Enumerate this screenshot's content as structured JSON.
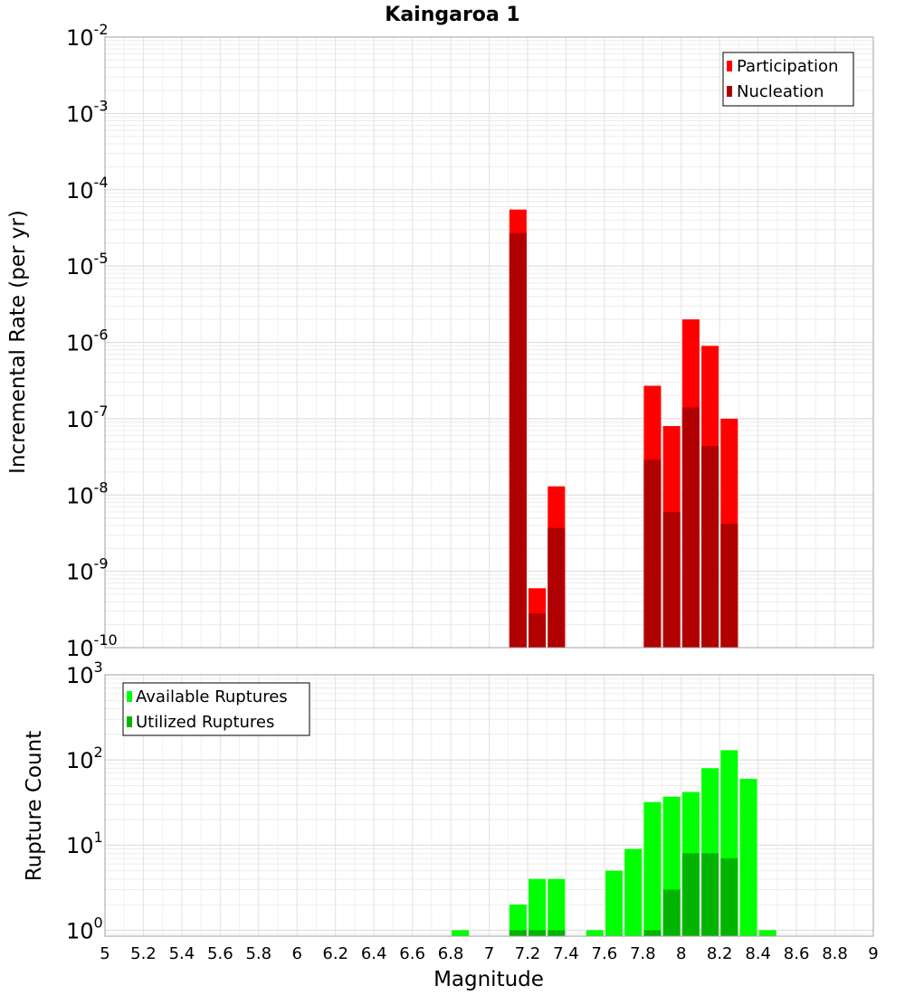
{
  "chart_data": [
    {
      "type": "bar",
      "title": "Kaingaroa 1",
      "xlabel": "",
      "ylabel": "Incremental Rate (per yr)",
      "yscale": "log",
      "ylim": [
        1e-10,
        0.01
      ],
      "xlim": [
        5,
        9
      ],
      "grid": true,
      "legend_position": "top-right",
      "legend": [
        "Participation",
        "Nucleation"
      ],
      "x": [
        7.15,
        7.25,
        7.35,
        7.85,
        7.95,
        8.05,
        8.15,
        8.25
      ],
      "series": [
        {
          "name": "Participation",
          "color": "#ff0000",
          "values": [
            5.5e-05,
            6e-10,
            1.3e-08,
            2.7e-07,
            8e-08,
            2e-06,
            9e-07,
            1e-07
          ]
        },
        {
          "name": "Nucleation",
          "color": "#b00000",
          "values": [
            2.7e-05,
            2.8e-10,
            3.7e-09,
            2.9e-08,
            6e-09,
            1.4e-07,
            4.4e-08,
            4.2e-09
          ]
        }
      ]
    },
    {
      "type": "bar",
      "title": "",
      "xlabel": "Magnitude",
      "ylabel": "Rupture Count",
      "yscale": "log",
      "ylim": [
        0.85,
        1000
      ],
      "xlim": [
        5,
        9
      ],
      "grid": true,
      "legend_position": "top-left",
      "legend": [
        "Available Ruptures",
        "Utilized Ruptures"
      ],
      "x_ticks": [
        "5",
        "5.2",
        "5.4",
        "5.6",
        "5.8",
        "6",
        "6.2",
        "6.4",
        "6.6",
        "6.8",
        "7",
        "7.2",
        "7.4",
        "7.6",
        "7.8",
        "8",
        "8.2",
        "8.4",
        "8.6",
        "8.8",
        "9"
      ],
      "series": [
        {
          "name": "Available Ruptures",
          "color": "#00ff00",
          "x": [
            6.85,
            7.15,
            7.25,
            7.35,
            7.55,
            7.65,
            7.75,
            7.85,
            7.95,
            8.05,
            8.15,
            8.25,
            8.35,
            8.45
          ],
          "values": [
            1,
            2,
            4,
            4,
            1,
            5,
            9,
            32,
            37,
            42,
            80,
            130,
            60,
            1
          ]
        },
        {
          "name": "Utilized Ruptures",
          "color": "#00b400",
          "x": [
            7.15,
            7.25,
            7.35,
            7.85,
            7.95,
            8.05,
            8.15,
            8.25
          ],
          "values": [
            1,
            1,
            1,
            1,
            3,
            8,
            8,
            7
          ]
        }
      ]
    }
  ]
}
